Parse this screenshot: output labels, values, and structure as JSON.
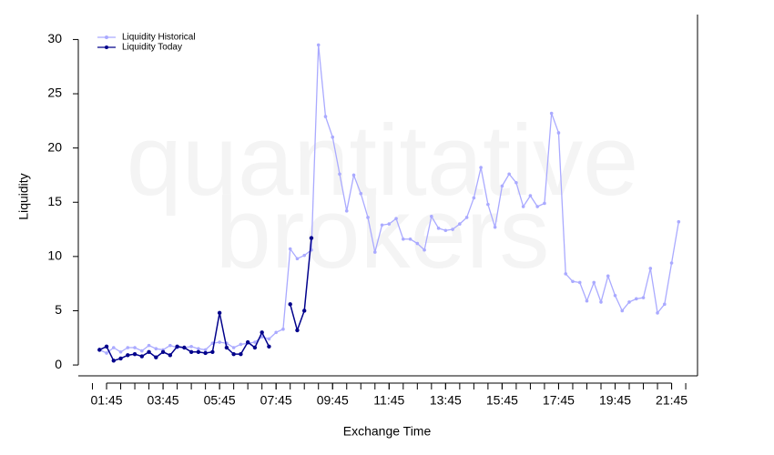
{
  "chart_data": {
    "type": "line",
    "watermark": [
      "quantitative",
      "brokers"
    ],
    "x_label": "Exchange Time",
    "y_label": "Liquidity",
    "x": [
      "01:30",
      "01:45",
      "02:00",
      "02:15",
      "02:30",
      "02:45",
      "03:00",
      "03:15",
      "03:30",
      "03:45",
      "04:00",
      "04:15",
      "04:30",
      "04:45",
      "05:00",
      "05:15",
      "05:30",
      "05:45",
      "06:00",
      "06:15",
      "06:30",
      "06:45",
      "07:00",
      "07:15",
      "07:30",
      "07:45",
      "08:00",
      "08:15",
      "08:30",
      "08:45",
      "09:00",
      "09:15",
      "09:30",
      "09:45",
      "10:00",
      "10:15",
      "10:30",
      "10:45",
      "11:00",
      "11:15",
      "11:30",
      "11:45",
      "12:00",
      "12:15",
      "12:30",
      "12:45",
      "13:00",
      "13:15",
      "13:30",
      "13:45",
      "14:00",
      "14:15",
      "14:30",
      "14:45",
      "15:00",
      "15:15",
      "15:30",
      "15:45",
      "16:00",
      "16:15",
      "16:30",
      "16:45",
      "17:00",
      "17:15",
      "17:30",
      "17:45",
      "18:00",
      "18:15",
      "18:30",
      "18:45",
      "19:00",
      "19:15",
      "19:30",
      "19:45",
      "20:00",
      "20:15",
      "20:30",
      "20:45",
      "21:00",
      "21:15",
      "21:30",
      "21:45",
      "22:00"
    ],
    "series": [
      {
        "name": "Liquidity Historical",
        "color": "#aaaaff",
        "values": [
          1.4,
          1.1,
          1.6,
          1.2,
          1.6,
          1.6,
          1.3,
          1.8,
          1.5,
          1.4,
          1.8,
          1.6,
          1.6,
          1.7,
          1.5,
          1.4,
          2.0,
          2.1,
          2.0,
          1.6,
          1.9,
          2.0,
          2.1,
          2.6,
          2.4,
          3.0,
          3.3,
          10.7,
          9.8,
          10.1,
          10.6,
          29.5,
          22.9,
          21.0,
          17.6,
          14.2,
          17.5,
          15.8,
          13.6,
          10.4,
          12.9,
          13.0,
          13.5,
          11.6,
          11.6,
          11.2,
          10.6,
          13.7,
          12.6,
          12.4,
          12.5,
          13.0,
          13.6,
          15.4,
          18.2,
          14.8,
          12.7,
          16.5,
          17.6,
          16.8,
          14.6,
          15.6,
          14.6,
          14.9,
          23.2,
          21.4,
          8.4,
          7.7,
          7.6,
          5.9,
          7.6,
          5.8,
          8.2,
          6.4,
          5.0,
          5.8,
          6.1,
          6.2,
          8.9,
          4.8,
          5.6,
          9.4,
          13.2
        ]
      },
      {
        "name": "Liquidity Today",
        "color": "#00008b",
        "values": [
          1.4,
          1.7,
          0.4,
          0.6,
          0.9,
          1.0,
          0.8,
          1.2,
          0.7,
          1.2,
          0.9,
          1.7,
          1.6,
          1.2,
          1.2,
          1.1,
          1.2,
          4.8,
          1.6,
          1.0,
          1.0,
          2.1,
          1.6,
          3.0,
          1.7,
          null,
          null,
          5.6,
          3.2,
          5.0,
          11.7,
          null,
          null,
          null,
          null,
          null,
          null,
          null,
          null,
          null,
          null,
          null,
          null,
          null,
          null,
          null,
          null,
          null,
          null,
          null,
          null,
          null,
          null,
          null,
          null,
          null,
          null,
          null,
          null,
          null,
          null,
          null,
          null,
          null,
          null,
          null,
          null,
          null,
          null,
          null,
          null,
          null,
          null,
          null,
          null,
          null,
          null,
          null,
          null,
          null,
          null,
          null,
          null
        ]
      }
    ],
    "xlim": [
      "00:45",
      "22:40"
    ],
    "xticks": [
      "01:45",
      "03:45",
      "05:45",
      "07:45",
      "09:45",
      "11:45",
      "13:45",
      "15:45",
      "17:45",
      "19:45",
      "21:45"
    ],
    "ylim": [
      -1,
      32.3
    ],
    "yticks": [
      0,
      5,
      10,
      15,
      20,
      25,
      30
    ],
    "legend": "top-left"
  }
}
